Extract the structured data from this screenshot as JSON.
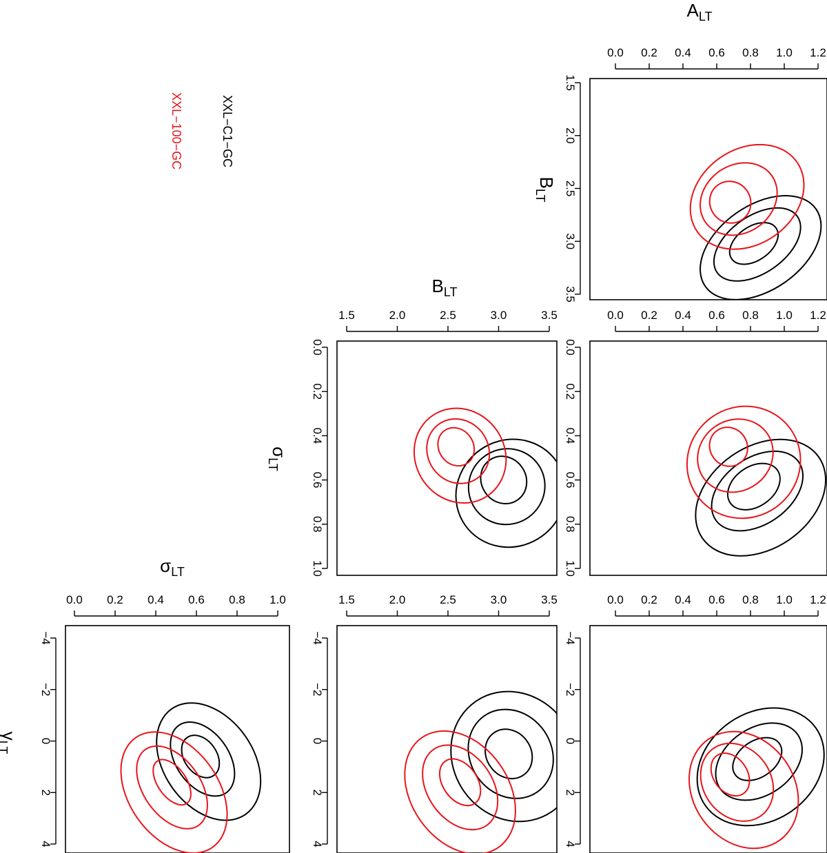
{
  "chart_data": {
    "type": "contour",
    "series": [
      {
        "name": "XXL−C1−GC",
        "color": "#000000"
      },
      {
        "name": "XXL−100−GC",
        "color": "#e8141a"
      }
    ],
    "params": {
      "A": {
        "label": "A",
        "sub": "LT",
        "range": [
          0.0,
          1.2
        ],
        "ticks": [
          "0.0",
          "0.2",
          "0.4",
          "0.6",
          "0.8",
          "1.0",
          "1.2"
        ]
      },
      "B": {
        "label": "B",
        "sub": "LT",
        "range": [
          1.5,
          3.5
        ],
        "ticks": [
          "1.5",
          "2.0",
          "2.5",
          "3.0",
          "3.5"
        ]
      },
      "S": {
        "label": "σ",
        "sub": "LT",
        "range": [
          0.0,
          1.0
        ],
        "ticks": [
          "0.0",
          "0.2",
          "0.4",
          "0.6",
          "0.8",
          "1.0"
        ]
      },
      "G": {
        "label": "γ",
        "sub": "LT",
        "range": [
          -4,
          4
        ],
        "ticks": [
          "−4",
          "−2",
          "0",
          "2",
          "4"
        ]
      }
    },
    "panels": [
      {
        "id": "A-B",
        "x": "A",
        "y": "B",
        "contours": {
          "black": [
            {
              "cx": 0.82,
              "cy": 3.02,
              "rx": 0.16,
              "ry": 0.16
            },
            {
              "cx": 0.84,
              "cy": 3.03,
              "rx": 0.29,
              "ry": 0.27
            },
            {
              "cx": 0.86,
              "cy": 3.06,
              "rx": 0.4,
              "ry": 0.4
            }
          ],
          "red": [
            {
              "cx": 0.68,
              "cy": 2.63,
              "rx": 0.12,
              "ry": 0.2
            },
            {
              "cx": 0.73,
              "cy": 2.6,
              "rx": 0.24,
              "ry": 0.32
            },
            {
              "cx": 0.78,
              "cy": 2.58,
              "rx": 0.36,
              "ry": 0.45
            }
          ]
        }
      },
      {
        "id": "B-S",
        "x": "B",
        "y": "S",
        "contours": {
          "black": [
            {
              "cx": 3.05,
              "cy": 0.6,
              "rx": 0.22,
              "ry": 0.11
            },
            {
              "cx": 3.08,
              "cy": 0.63,
              "rx": 0.38,
              "ry": 0.17
            },
            {
              "cx": 3.12,
              "cy": 0.66,
              "rx": 0.55,
              "ry": 0.24
            }
          ],
          "red": [
            {
              "cx": 2.58,
              "cy": 0.45,
              "rx": 0.17,
              "ry": 0.09
            },
            {
              "cx": 2.6,
              "cy": 0.47,
              "rx": 0.3,
              "ry": 0.15
            },
            {
              "cx": 2.62,
              "cy": 0.49,
              "rx": 0.44,
              "ry": 0.22
            }
          ]
        }
      },
      {
        "id": "A-S",
        "x": "A",
        "y": "S",
        "contours": {
          "black": [
            {
              "cx": 0.82,
              "cy": 0.63,
              "rx": 0.17,
              "ry": 0.09
            },
            {
              "cx": 0.84,
              "cy": 0.65,
              "rx": 0.3,
              "ry": 0.15
            },
            {
              "cx": 0.86,
              "cy": 0.68,
              "rx": 0.42,
              "ry": 0.23
            }
          ],
          "red": [
            {
              "cx": 0.67,
              "cy": 0.45,
              "rx": 0.11,
              "ry": 0.09
            },
            {
              "cx": 0.71,
              "cy": 0.49,
              "rx": 0.23,
              "ry": 0.16
            },
            {
              "cx": 0.76,
              "cy": 0.52,
              "rx": 0.34,
              "ry": 0.25
            }
          ]
        }
      },
      {
        "id": "S-G",
        "x": "S",
        "y": "G",
        "contours": {
          "black": [
            {
              "cx": 0.62,
              "cy": 0.6,
              "rx": 0.08,
              "ry": 0.9
            },
            {
              "cx": 0.63,
              "cy": 0.7,
              "rx": 0.13,
              "ry": 1.6
            },
            {
              "cx": 0.66,
              "cy": 0.8,
              "rx": 0.22,
              "ry": 2.5
            }
          ],
          "red": [
            {
              "cx": 0.48,
              "cy": 1.6,
              "rx": 0.07,
              "ry": 1.0
            },
            {
              "cx": 0.48,
              "cy": 1.8,
              "rx": 0.14,
              "ry": 1.8
            },
            {
              "cx": 0.49,
              "cy": 2.0,
              "rx": 0.22,
              "ry": 2.6
            }
          ]
        }
      },
      {
        "id": "B-G",
        "x": "B",
        "y": "G",
        "contours": {
          "black": [
            {
              "cx": 3.1,
              "cy": 0.5,
              "rx": 0.22,
              "ry": 1.0
            },
            {
              "cx": 3.12,
              "cy": 0.5,
              "rx": 0.4,
              "ry": 1.8
            },
            {
              "cx": 3.15,
              "cy": 0.6,
              "rx": 0.6,
              "ry": 2.6
            }
          ],
          "red": [
            {
              "cx": 2.62,
              "cy": 1.6,
              "rx": 0.17,
              "ry": 1.0
            },
            {
              "cx": 2.62,
              "cy": 1.8,
              "rx": 0.32,
              "ry": 1.8
            },
            {
              "cx": 2.62,
              "cy": 2.0,
              "rx": 0.48,
              "ry": 2.6
            }
          ]
        }
      },
      {
        "id": "A-G",
        "x": "A",
        "y": "G",
        "contours": {
          "black": [
            {
              "cx": 0.84,
              "cy": 0.7,
              "rx": 0.16,
              "ry": 0.7
            },
            {
              "cx": 0.85,
              "cy": 0.8,
              "rx": 0.28,
              "ry": 1.3
            },
            {
              "cx": 0.86,
              "cy": 1.0,
              "rx": 0.4,
              "ry": 2.1
            }
          ],
          "red": [
            {
              "cx": 0.68,
              "cy": 1.3,
              "rx": 0.1,
              "ry": 0.9
            },
            {
              "cx": 0.72,
              "cy": 1.6,
              "rx": 0.2,
              "ry": 1.6
            },
            {
              "cx": 0.76,
              "cy": 1.9,
              "rx": 0.3,
              "ry": 2.4
            }
          ]
        }
      }
    ]
  }
}
